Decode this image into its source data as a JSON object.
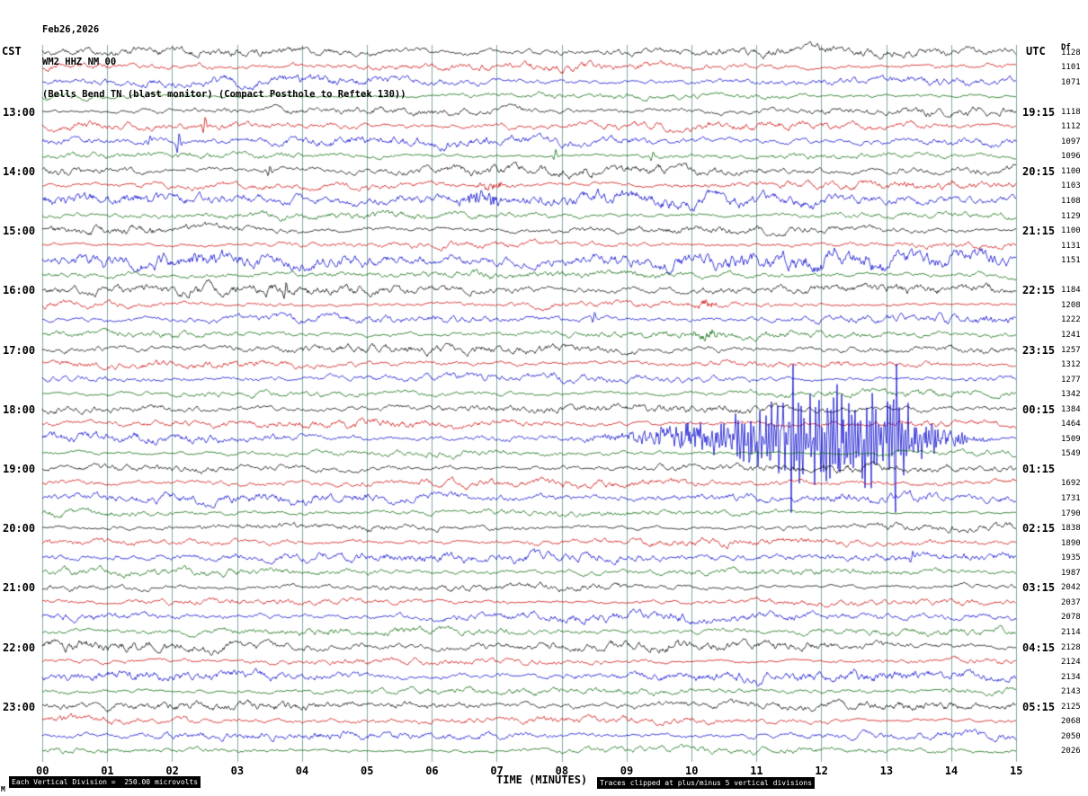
{
  "header": {
    "date": "Feb26,2026",
    "station": "WM2 HHZ NM 00",
    "description": "(Bells Bend TN (blast monitor) (Compact Posthole to Reftek 130))"
  },
  "axes": {
    "left_timezone": "CST",
    "right_timezone": "UTC",
    "right_column_header": "Df",
    "left_labels": [
      "13:00",
      "14:00",
      "15:00",
      "16:00",
      "17:00",
      "18:00",
      "19:00",
      "20:00",
      "21:00",
      "22:00",
      "23:00"
    ],
    "right_labels": [
      "19:15",
      "20:15",
      "21:15",
      "22:15",
      "23:15",
      "00:15",
      "01:15",
      "02:15",
      "03:15",
      "04:15",
      "05:15"
    ],
    "minute_ticks": [
      "00",
      "01",
      "02",
      "03",
      "04",
      "05",
      "06",
      "07",
      "08",
      "09",
      "10",
      "11",
      "12",
      "13",
      "14",
      "15"
    ],
    "xlabel": "TIME (MINUTES)"
  },
  "footer": {
    "left_note": "Each Vertical Division =  250.00 microvolts",
    "right_note": "Traces clipped at plus/minus 5 vertical divisions",
    "watermark": "M"
  },
  "colors": {
    "background": "#ffffff",
    "grid": "#86a8a8",
    "bar_bg": "#000000",
    "bar_fg": "#ffffff",
    "text": "#000000"
  },
  "chart_data": {
    "type": "line",
    "subtype": "helicorder-seismogram",
    "title": "WM2 HHZ NM 00 Feb26,2026",
    "station_description": "(Bells Bend TN (blast monitor) (Compact Posthole to Reftek 130))",
    "xlabel": "TIME (MINUTES)",
    "x_minutes_per_line": 15,
    "rows": 48,
    "minutes_per_row": 15,
    "first_row_time_cst": "12:00",
    "hour_label_row_step": 4,
    "first_hour_label_row": 4,
    "microvolts_per_division": 250,
    "clip_divisions": 5,
    "grid": "vertical-per-minute",
    "legend": "none",
    "trace_color_cycle": [
      "#000000",
      "#cc0000",
      "#0000cc",
      "#006600"
    ],
    "trace_color_names": [
      "black",
      "red",
      "blue",
      "green"
    ],
    "row_amplitude_values": [
      "1128",
      "1101",
      "1071",
      "",
      "1118",
      "1112",
      "1097",
      "1096",
      "1100",
      "1103",
      "1108",
      "1129",
      "1100",
      "1131",
      "1151",
      "",
      "1184",
      "1208",
      "1222",
      "1241",
      "1257",
      "1312",
      "1277",
      "1342",
      "1384",
      "1464",
      "1509",
      "1549",
      "",
      "1692",
      "1731",
      "1790",
      "1838",
      "1890",
      "1935",
      "1987",
      "2042",
      "2037",
      "2078",
      "2114",
      "2128",
      "2124",
      "2134",
      "2143",
      "2125",
      "2068",
      "2050",
      "2026"
    ],
    "row_noise_scale": {
      "8": 1.5,
      "10": 1.35,
      "12": 1.15,
      "14": 1.75,
      "16": 1.3,
      "40": 1.25,
      "42": 1.3
    },
    "events": [
      {
        "row": 5,
        "minute": 2.5,
        "amp": 10,
        "type": "spike"
      },
      {
        "row": 6,
        "minute": 2.1,
        "amp": 14,
        "type": "spike"
      },
      {
        "row": 6,
        "minute": 1.65,
        "amp": 6,
        "type": "spike"
      },
      {
        "row": 7,
        "minute": 7.9,
        "amp": 7,
        "type": "spike"
      },
      {
        "row": 7,
        "minute": 9.4,
        "amp": 7,
        "type": "spike"
      },
      {
        "row": 8,
        "minute": 3.5,
        "amp": 8,
        "type": "spike"
      },
      {
        "row": 9,
        "minute": 6.9,
        "amp": 5,
        "type": "burst",
        "width": 0.2
      },
      {
        "row": 10,
        "minute": 6.8,
        "amp": 6,
        "type": "burst",
        "width": 0.35
      },
      {
        "row": 16,
        "minute": 3.75,
        "amp": 11,
        "type": "spike"
      },
      {
        "row": 17,
        "minute": 10.2,
        "amp": 4,
        "type": "burst",
        "width": 0.15
      },
      {
        "row": 18,
        "minute": 8.5,
        "amp": 8,
        "type": "spike"
      },
      {
        "row": 19,
        "minute": 10.3,
        "amp": 5,
        "type": "burst",
        "width": 0.2
      },
      {
        "row": 26,
        "minute": 10.0,
        "amp": 12,
        "type": "burst",
        "width": 0.9
      },
      {
        "row": 26,
        "minute": 11.9,
        "amp": 42,
        "type": "event",
        "width": 1.3
      },
      {
        "row": 26,
        "minute": 12.8,
        "amp": 25,
        "type": "event",
        "width": 1.0
      },
      {
        "row": 26,
        "minute": 13.6,
        "amp": 14,
        "type": "burst",
        "width": 0.5
      },
      {
        "row": 26,
        "minute": 11.55,
        "amp": 130,
        "type": "clipped-spike"
      },
      {
        "row": 26,
        "minute": 12.3,
        "amp": 130,
        "type": "clipped-spike"
      },
      {
        "row": 26,
        "minute": 13.15,
        "amp": 130,
        "type": "clipped-spike"
      },
      {
        "row": 34,
        "minute": 13.4,
        "amp": 9,
        "type": "spike"
      }
    ]
  }
}
